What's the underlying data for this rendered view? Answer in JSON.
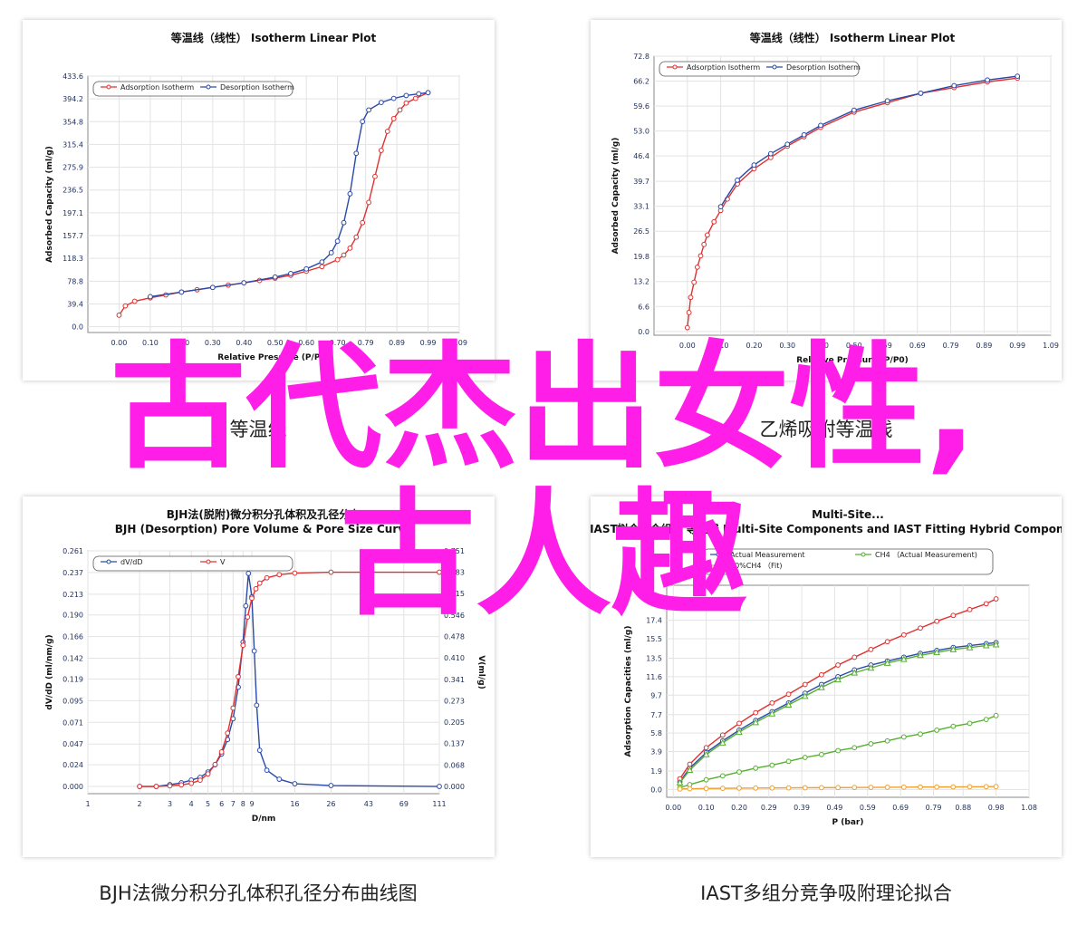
{
  "overlay": {
    "line1": "古代杰出女性,",
    "line2": "古人趣"
  },
  "colors": {
    "overlay": "#ff1ee8",
    "adsorption": "#e03030",
    "desorption": "#2a4aa8",
    "ch4": "#55b030",
    "fit10": "#f0a030",
    "gridline": "#e3e3e3"
  },
  "captions": {
    "top_left": "等温线",
    "top_right": "乙烯吸附等温线",
    "bottom_left": "BJH法微分积分孔体积孔径分布曲线图",
    "bottom_right": "IAST多组分竞争吸附理论拟合"
  },
  "chart_data": [
    {
      "id": "isotherm_left",
      "type": "line",
      "title": "等温线（线性） Isotherm Linear Plot",
      "xlabel": "Relative Pressure (P/P0)",
      "ylabel": "Adsorbed Capacity (ml/g)",
      "xlim": [
        -0.1,
        1.09
      ],
      "ylim": [
        -10,
        433.6
      ],
      "xticks": [
        "0.00",
        "0.10",
        "0.20",
        "0.30",
        "0.40",
        "0.50",
        "0.60",
        "0.70",
        "0.79",
        "0.89",
        "0.99",
        "1.09"
      ],
      "yticks": [
        "0.0",
        "39.4",
        "78.8",
        "118.3",
        "157.7",
        "197.1",
        "236.5",
        "275.9",
        "315.4",
        "354.8",
        "394.2",
        "433.6"
      ],
      "grid": true,
      "legend": "top-left",
      "series": [
        {
          "name": "Adsorption Isotherm",
          "color": "#e03030",
          "marker": "circle",
          "x": [
            0.0,
            0.02,
            0.05,
            0.1,
            0.15,
            0.2,
            0.25,
            0.3,
            0.35,
            0.4,
            0.45,
            0.5,
            0.55,
            0.6,
            0.65,
            0.7,
            0.72,
            0.74,
            0.76,
            0.78,
            0.8,
            0.82,
            0.84,
            0.86,
            0.88,
            0.9,
            0.92,
            0.95,
            0.99
          ],
          "y": [
            20,
            36,
            44,
            50,
            55,
            60,
            64,
            68,
            72,
            76,
            80,
            84,
            89,
            96,
            104,
            116,
            124,
            136,
            155,
            180,
            215,
            260,
            305,
            338,
            360,
            375,
            387,
            395,
            405
          ]
        },
        {
          "name": "Desorption Isotherm",
          "color": "#2a4aa8",
          "marker": "circle",
          "x": [
            0.1,
            0.2,
            0.3,
            0.4,
            0.5,
            0.55,
            0.6,
            0.65,
            0.68,
            0.7,
            0.72,
            0.74,
            0.76,
            0.78,
            0.8,
            0.84,
            0.88,
            0.92,
            0.96,
            0.99
          ],
          "y": [
            52,
            60,
            68,
            76,
            86,
            92,
            100,
            112,
            128,
            148,
            180,
            230,
            300,
            355,
            375,
            388,
            395,
            400,
            403,
            405
          ]
        }
      ]
    },
    {
      "id": "isotherm_right",
      "type": "line",
      "title": "等温线（线性） Isotherm Linear Plot",
      "xlabel": "Relative Pressure (P/P0)",
      "ylabel": "Adsorbed Capacity (ml/g)",
      "xlim": [
        -0.1,
        1.09
      ],
      "ylim": [
        -1,
        72.8
      ],
      "xticks": [
        "0.00",
        "0.10",
        "0.20",
        "0.30",
        "0.40",
        "0.50",
        "0.59",
        "0.69",
        "0.79",
        "0.89",
        "0.99",
        "1.09"
      ],
      "yticks": [
        "0.0",
        "6.6",
        "13.2",
        "19.8",
        "26.5",
        "33.1",
        "39.7",
        "46.4",
        "53.0",
        "59.6",
        "66.2",
        "72.8"
      ],
      "grid": true,
      "legend": "top-left",
      "series": [
        {
          "name": "Adsorption Isotherm",
          "color": "#e03030",
          "marker": "circle",
          "x": [
            0.0,
            0.005,
            0.01,
            0.02,
            0.03,
            0.04,
            0.05,
            0.06,
            0.08,
            0.1,
            0.12,
            0.15,
            0.2,
            0.25,
            0.3,
            0.35,
            0.4,
            0.5,
            0.6,
            0.7,
            0.8,
            0.9,
            0.99
          ],
          "y": [
            1,
            5,
            9,
            13,
            17,
            20,
            23,
            25.5,
            29,
            32,
            35,
            39,
            43,
            46,
            49,
            51.5,
            54,
            58,
            60.5,
            63,
            64.5,
            66,
            67
          ]
        },
        {
          "name": "Desorption Isotherm",
          "color": "#2a4aa8",
          "marker": "circle",
          "x": [
            0.1,
            0.15,
            0.2,
            0.25,
            0.3,
            0.35,
            0.4,
            0.5,
            0.6,
            0.7,
            0.8,
            0.9,
            0.99
          ],
          "y": [
            33,
            40,
            44,
            47,
            49.5,
            52,
            54.5,
            58.5,
            61,
            63,
            65,
            66.5,
            67.5
          ]
        }
      ]
    },
    {
      "id": "bjh_pore",
      "type": "line",
      "title": "BJH法(脱附)微分积分孔体积及孔径分布 BJH (Desorption) Pore Volume & Pore Size Curve",
      "xlabel": "D/nm",
      "ylabel": "dV/dD (ml/nm/g)",
      "ylabel_right": "V(ml/g)",
      "x_scale": "log",
      "xlim": [
        1,
        111
      ],
      "xticks": [
        "1",
        "2",
        "3",
        "4",
        "5",
        "6",
        "7",
        "8",
        "9",
        "16",
        "26",
        "43",
        "69",
        "111"
      ],
      "yticks": [
        "0.000",
        "0.024",
        "0.047",
        "0.071",
        "0.095",
        "0.119",
        "0.142",
        "0.166",
        "0.190",
        "0.213",
        "0.237",
        "0.261"
      ],
      "yticks_right": [
        "0.000",
        "0.068",
        "0.137",
        "0.205",
        "0.273",
        "0.341",
        "0.410",
        "0.478",
        "0.546",
        "0.615",
        "0.683",
        "0.751"
      ],
      "ylim": [
        -0.008,
        0.261
      ],
      "ylim_right": [
        -0.023,
        0.751
      ],
      "grid": true,
      "legend": "top-left",
      "series": [
        {
          "name": "dV/dD",
          "axis": "left",
          "color": "#2a4aa8",
          "marker": "circle",
          "x": [
            2,
            2.5,
            3,
            3.5,
            4,
            4.5,
            5,
            5.5,
            6,
            6.5,
            7,
            7.5,
            8,
            8.3,
            8.6,
            9,
            9.3,
            9.6,
            10,
            11,
            13,
            16,
            26,
            111
          ],
          "y": [
            0,
            0,
            0.002,
            0.004,
            0.007,
            0.01,
            0.016,
            0.024,
            0.036,
            0.052,
            0.075,
            0.11,
            0.16,
            0.2,
            0.236,
            0.21,
            0.15,
            0.09,
            0.04,
            0.018,
            0.008,
            0.003,
            0.001,
            0
          ]
        },
        {
          "name": "V",
          "axis": "right",
          "color": "#e03030",
          "marker": "circle",
          "x": [
            2,
            2.5,
            3,
            3.5,
            4,
            4.5,
            5,
            5.5,
            6,
            6.5,
            7,
            7.5,
            8,
            8.5,
            9,
            9.5,
            10,
            11,
            13,
            16,
            26,
            111
          ],
          "y": [
            0,
            0,
            0.002,
            0.005,
            0.01,
            0.02,
            0.04,
            0.07,
            0.11,
            0.17,
            0.25,
            0.35,
            0.45,
            0.54,
            0.6,
            0.63,
            0.648,
            0.665,
            0.675,
            0.68,
            0.683,
            0.683
          ]
        }
      ]
    },
    {
      "id": "iast_fit",
      "type": "line",
      "title": "Multi-Site... 多组分及IAST拟合混合组分 等温线 Multi-Site Components and IAST Fitting Hybrid Components Isotherm",
      "xlabel": "P (bar)",
      "ylabel": "Adsorption Capacities (ml/g)",
      "xlim": [
        -0.02,
        1.08
      ],
      "ylim": [
        -0.8,
        21
      ],
      "xticks": [
        "0.00",
        "0.10",
        "0.20",
        "0.29",
        "0.39",
        "0.49",
        "0.59",
        "0.69",
        "0.79",
        "0.88",
        "0.98",
        "1.08"
      ],
      "yticks": [
        "0.0",
        "1.9",
        "3.9",
        "5.8",
        "7.7",
        "9.7",
        "11.6",
        "13.5",
        "15.5",
        "17.4"
      ],
      "grid": true,
      "legend": "top",
      "series": [
        {
          "name": "Actual Measurement",
          "color": "#2a4aa8",
          "marker": "circle",
          "x": [
            0.02,
            0.05,
            0.1,
            0.15,
            0.2,
            0.25,
            0.3,
            0.35,
            0.4,
            0.45,
            0.5,
            0.55,
            0.6,
            0.65,
            0.7,
            0.75,
            0.8,
            0.85,
            0.9,
            0.95,
            0.98
          ],
          "y": [
            0.8,
            2.2,
            3.8,
            5.0,
            6.1,
            7.1,
            8.0,
            8.9,
            9.9,
            10.8,
            11.6,
            12.3,
            12.8,
            13.2,
            13.6,
            14.0,
            14.3,
            14.6,
            14.8,
            15.0,
            15.1
          ]
        },
        {
          "name": "Fit (mixture)",
          "color": "#e03030",
          "marker": "circle",
          "x": [
            0.02,
            0.05,
            0.1,
            0.15,
            0.2,
            0.25,
            0.3,
            0.35,
            0.4,
            0.45,
            0.5,
            0.55,
            0.6,
            0.65,
            0.7,
            0.75,
            0.8,
            0.85,
            0.9,
            0.95,
            0.98
          ],
          "y": [
            1.1,
            2.6,
            4.3,
            5.6,
            6.8,
            7.9,
            8.9,
            9.8,
            10.8,
            11.8,
            12.8,
            13.6,
            14.4,
            15.2,
            15.9,
            16.6,
            17.3,
            17.9,
            18.5,
            19.1,
            19.6
          ]
        },
        {
          "name": "CH4 （Actual Measurement)",
          "color": "#55b030",
          "marker": "triangle",
          "x": [
            0.02,
            0.05,
            0.1,
            0.15,
            0.2,
            0.25,
            0.3,
            0.35,
            0.4,
            0.45,
            0.5,
            0.55,
            0.6,
            0.65,
            0.7,
            0.75,
            0.8,
            0.85,
            0.9,
            0.95,
            0.98
          ],
          "y": [
            0.7,
            2.0,
            3.6,
            4.8,
            5.9,
            6.9,
            7.8,
            8.7,
            9.6,
            10.5,
            11.3,
            12.0,
            12.5,
            13.0,
            13.4,
            13.8,
            14.1,
            14.4,
            14.6,
            14.8,
            14.9
          ]
        },
        {
          "name": "CH4 linear",
          "color": "#55b030",
          "marker": "circle",
          "x": [
            0.02,
            0.05,
            0.1,
            0.15,
            0.2,
            0.25,
            0.3,
            0.35,
            0.4,
            0.45,
            0.5,
            0.55,
            0.6,
            0.65,
            0.7,
            0.75,
            0.8,
            0.85,
            0.9,
            0.95,
            0.98
          ],
          "y": [
            0.2,
            0.5,
            1.0,
            1.4,
            1.8,
            2.2,
            2.5,
            2.9,
            3.3,
            3.6,
            4.0,
            4.3,
            4.7,
            5.0,
            5.4,
            5.7,
            6.1,
            6.5,
            6.8,
            7.2,
            7.6
          ]
        },
        {
          "name": "10%CH4 （Fit)",
          "color": "#f0a030",
          "marker": "circle",
          "x": [
            0.02,
            0.05,
            0.1,
            0.15,
            0.2,
            0.25,
            0.3,
            0.35,
            0.4,
            0.45,
            0.5,
            0.55,
            0.6,
            0.65,
            0.7,
            0.75,
            0.8,
            0.85,
            0.9,
            0.95,
            0.98
          ],
          "y": [
            0.05,
            0.08,
            0.1,
            0.12,
            0.14,
            0.15,
            0.16,
            0.17,
            0.18,
            0.19,
            0.2,
            0.21,
            0.22,
            0.23,
            0.24,
            0.25,
            0.26,
            0.27,
            0.28,
            0.29,
            0.3
          ]
        }
      ]
    }
  ]
}
